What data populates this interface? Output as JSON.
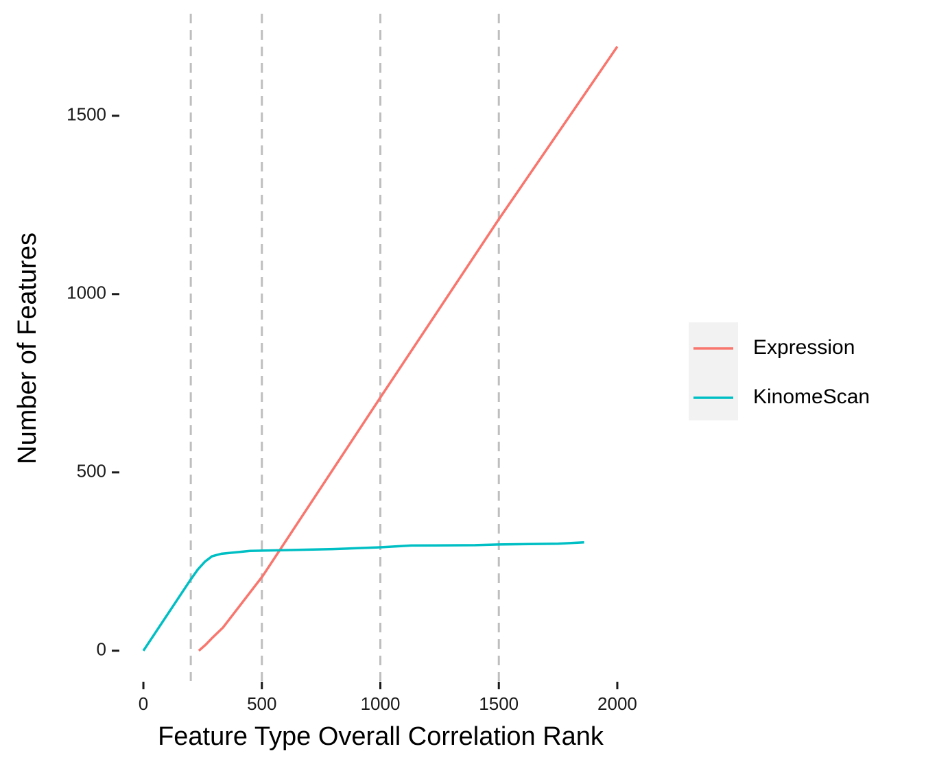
{
  "chart_data": {
    "type": "line",
    "xlabel": "Feature Type Overall Correlation Rank",
    "ylabel": "Number of Features",
    "xlim": [
      -100,
      2100
    ],
    "xticks": [
      0,
      500,
      1000,
      1500,
      2000
    ],
    "ylim": [
      -85,
      1785
    ],
    "yticks": [
      0,
      500,
      1000,
      1500
    ],
    "vlines": [
      200,
      500,
      1000,
      1500
    ],
    "series": [
      {
        "name": "Expression",
        "color": "#f8766d",
        "x": [
          234,
          263,
          292,
          336,
          504,
          1000,
          1500,
          2000
        ],
        "values": [
          0,
          17,
          37,
          65,
          210,
          710,
          1210,
          1694
        ]
      },
      {
        "name": "KinomeScan",
        "color": "#00bfc4",
        "x": [
          0,
          200,
          230,
          260,
          290,
          330,
          450,
          600,
          800,
          1000,
          1130,
          1400,
          1500,
          1750,
          1860
        ],
        "values": [
          0,
          200,
          228,
          250,
          265,
          272,
          280,
          282,
          285,
          290,
          295,
          296,
          298,
          300,
          304
        ]
      }
    ]
  }
}
